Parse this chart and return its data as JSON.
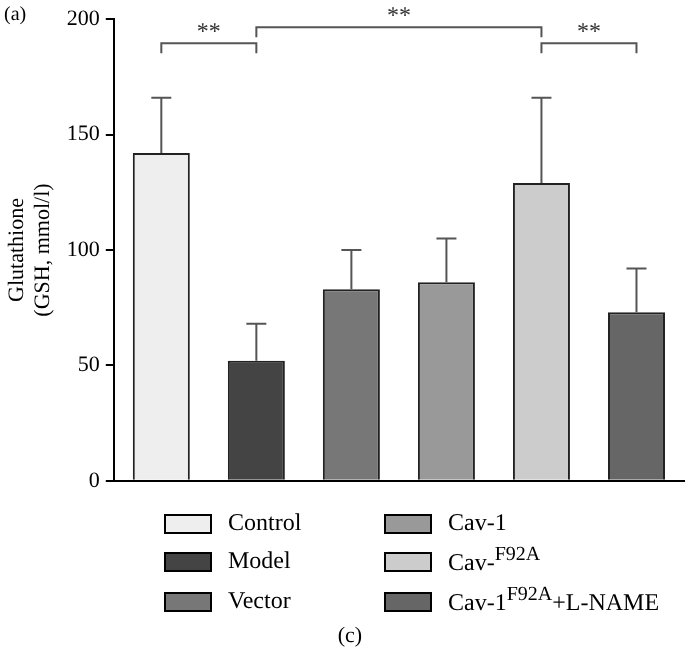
{
  "chart_data": {
    "type": "bar",
    "ylabel": "Glutathione\n(GSH, mmol/l)",
    "categories": [
      null,
      null,
      null,
      null,
      null,
      null
    ],
    "series": [
      {
        "name": "Control",
        "color": "#eeeeee",
        "values": [
          142,
          null,
          null,
          null,
          null,
          null
        ],
        "errors": [
          [
            142,
            166
          ],
          null,
          null,
          null,
          null,
          null
        ]
      },
      {
        "name": "Model",
        "color": "#444444",
        "values": [
          null,
          52,
          null,
          null,
          null,
          null
        ],
        "errors": [
          null,
          [
            52,
            68
          ],
          null,
          null,
          null,
          null
        ]
      },
      {
        "name": "Vector",
        "color": "#777777",
        "values": [
          null,
          null,
          83,
          null,
          null,
          null
        ],
        "errors": [
          null,
          null,
          [
            83,
            100
          ],
          null,
          null,
          null
        ]
      },
      {
        "name": "Cav-1",
        "color": "#999999",
        "values": [
          null,
          null,
          null,
          86,
          null,
          null
        ],
        "errors": [
          null,
          null,
          null,
          [
            86,
            105
          ],
          null,
          null
        ]
      },
      {
        "name": "Cav-$^{F92A}$",
        "color": "#cccccc",
        "values": [
          null,
          null,
          null,
          null,
          129,
          null
        ],
        "errors": [
          null,
          null,
          null,
          null,
          [
            129,
            166
          ],
          null
        ]
      },
      {
        "name": "Cav-1$^{F92A}$+L-NAME",
        "color": "#666666",
        "values": [
          null,
          null,
          null,
          null,
          null,
          73
        ],
        "errors": [
          null,
          null,
          null,
          null,
          null,
          [
            73,
            92
          ]
        ]
      }
    ],
    "ylim": [
      0,
      200
    ],
    "yticks": [
      0,
      50,
      100,
      150,
      200
    ],
    "grid": false,
    "legend": "bottom",
    "tick_labels": "y",
    "annotations": [
      "(a)",
      "**",
      "**",
      "**",
      "(c)"
    ]
  }
}
